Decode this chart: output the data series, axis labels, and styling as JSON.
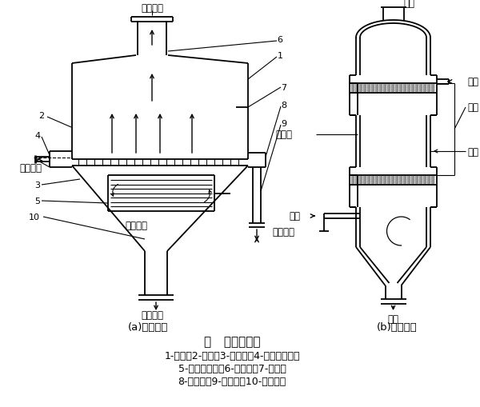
{
  "title": "图   泡沫除尘器",
  "subtitle_a": "(a)单层筛板",
  "subtitle_b": "(b)多层筛板",
  "caption_line1": "1-塔体；2-筛板；3-锥形斗；4-液体接受室；",
  "caption_line2": "5-气体分布器；6-排气管；7-挡板；",
  "caption_line3": "8-溢流室；9-溢流管；10-排泥浆管",
  "bg_color": "#ffffff",
  "line_color": "#000000"
}
